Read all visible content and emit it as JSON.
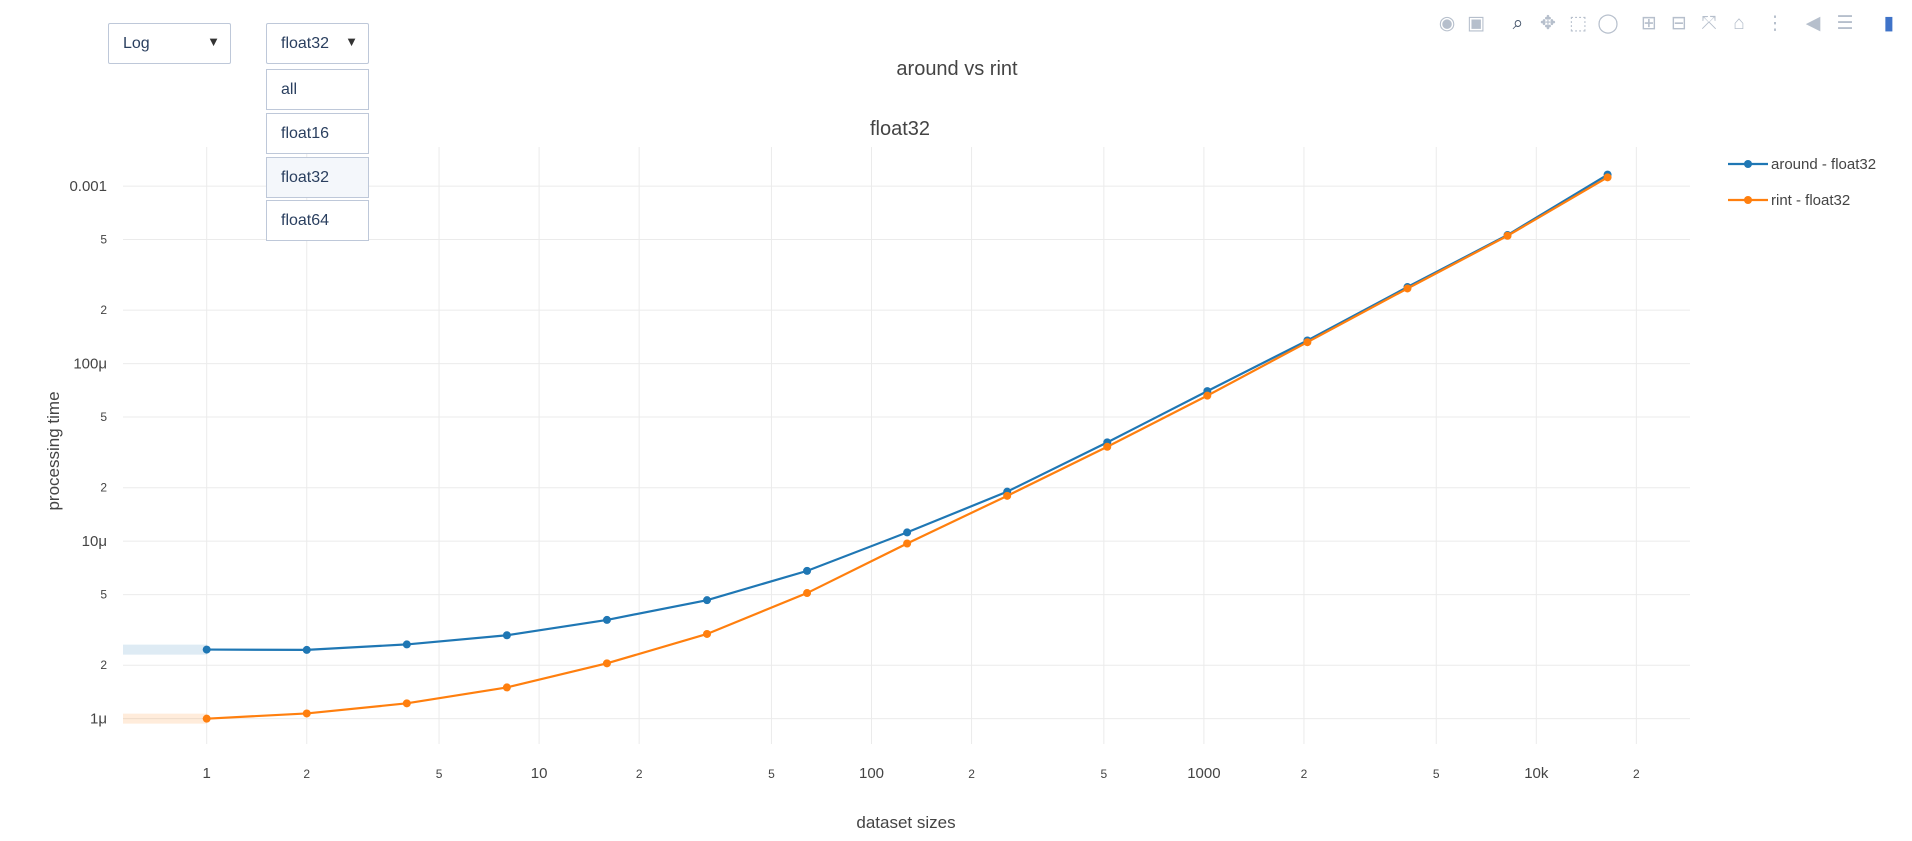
{
  "controls": {
    "scale_dropdown": {
      "selected": "Log"
    },
    "dtype_dropdown": {
      "selected": "float32",
      "options": [
        "all",
        "float16",
        "float32",
        "float64"
      ]
    }
  },
  "modebar": [
    "camera-icon",
    "save-icon",
    "zoom-icon",
    "pan-icon",
    "box-select-icon",
    "lasso-icon",
    "zoom-in-icon",
    "zoom-out-icon",
    "autoscale-icon",
    "reset-axes-icon",
    "spike-lines-icon",
    "hover-closest-icon",
    "hover-compare-icon",
    "plotly-logo-icon"
  ],
  "chart_data": {
    "type": "line",
    "title": "around vs rint",
    "subtitle": "float32",
    "xlabel": "dataset sizes",
    "ylabel": "processing time",
    "xscale": "log",
    "yscale": "log",
    "xlim": [
      0.56,
      29000
    ],
    "ylim": [
      7.2e-07,
      0.00166
    ],
    "x_ticks": [
      {
        "v": 1,
        "t": "1"
      },
      {
        "v": 2,
        "t": "2"
      },
      {
        "v": 5,
        "t": "5"
      },
      {
        "v": 10,
        "t": "10"
      },
      {
        "v": 20,
        "t": "2"
      },
      {
        "v": 50,
        "t": "5"
      },
      {
        "v": 100,
        "t": "100"
      },
      {
        "v": 200,
        "t": "2"
      },
      {
        "v": 500,
        "t": "5"
      },
      {
        "v": 1000,
        "t": "1000"
      },
      {
        "v": 2000,
        "t": "2"
      },
      {
        "v": 5000,
        "t": "5"
      },
      {
        "v": 10000,
        "t": "10k"
      },
      {
        "v": 20000,
        "t": "2"
      }
    ],
    "y_ticks": [
      {
        "v": 1e-06,
        "t": "1μ"
      },
      {
        "v": 2e-06,
        "t": "2"
      },
      {
        "v": 5e-06,
        "t": "5"
      },
      {
        "v": 1e-05,
        "t": "10μ"
      },
      {
        "v": 2e-05,
        "t": "2"
      },
      {
        "v": 5e-05,
        "t": "5"
      },
      {
        "v": 0.0001,
        "t": "100μ"
      },
      {
        "v": 0.0002,
        "t": "2"
      },
      {
        "v": 0.0005,
        "t": "5"
      },
      {
        "v": 0.001,
        "t": "0.001"
      }
    ],
    "x": [
      1,
      2,
      4,
      8,
      16,
      32,
      64,
      128,
      256,
      512,
      1024,
      2048,
      4096,
      8192,
      16384
    ],
    "series": [
      {
        "name": "around - float32",
        "color": "#1f77b4",
        "values": [
          2.45e-06,
          2.44e-06,
          2.62e-06,
          2.95e-06,
          3.6e-06,
          4.65e-06,
          6.8e-06,
          1.12e-05,
          1.9e-05,
          3.6e-05,
          7e-05,
          0.000135,
          0.00027,
          0.00053,
          0.00116
        ]
      },
      {
        "name": "rint - float32",
        "color": "#ff7f0e",
        "values": [
          1e-06,
          1.07e-06,
          1.22e-06,
          1.5e-06,
          2.05e-06,
          3e-06,
          5.1e-06,
          9.7e-06,
          1.8e-05,
          3.4e-05,
          6.6e-05,
          0.000132,
          0.000265,
          0.000525,
          0.00112
        ]
      }
    ],
    "legend_position": "top-right"
  }
}
